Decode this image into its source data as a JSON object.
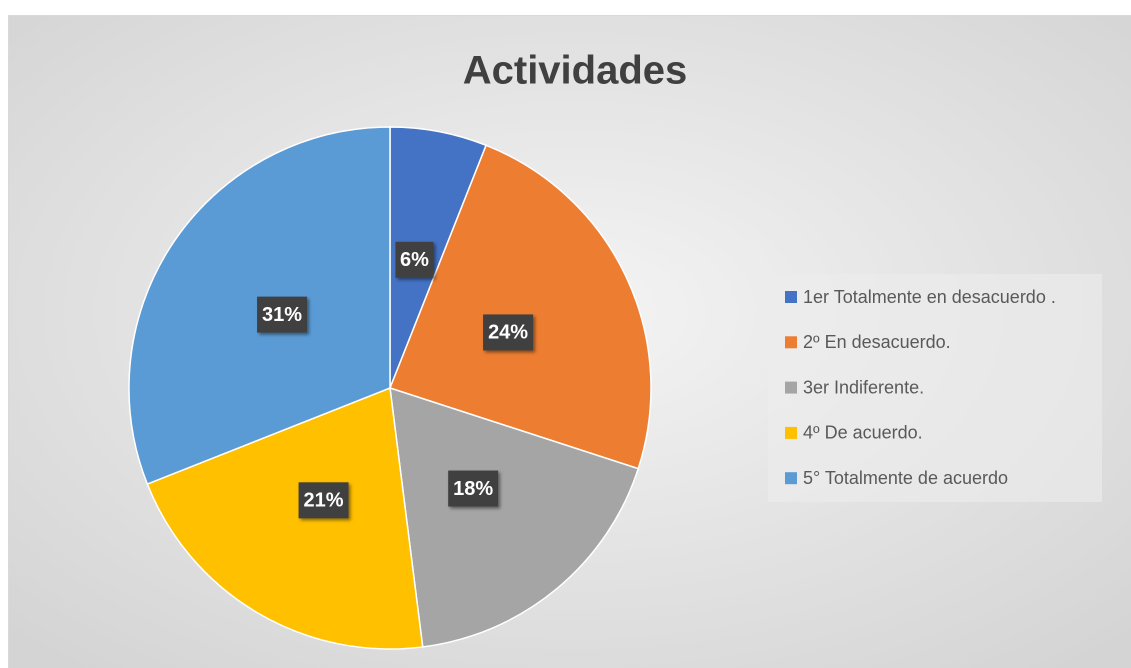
{
  "chart_data": {
    "type": "pie",
    "title": "Actividades",
    "categories": [
      "1er Totalmente en desacuerdo .",
      "2º En desacuerdo.",
      "3er Indiferente.",
      "4º De acuerdo.",
      "5° Totalmente de acuerdo"
    ],
    "values": [
      6,
      24,
      18,
      21,
      31
    ],
    "value_labels": [
      "6%",
      "24%",
      "18%",
      "21%",
      "31%"
    ],
    "colors": [
      "#4472c4",
      "#ed7d31",
      "#a5a5a5",
      "#ffc000",
      "#5b9bd5"
    ],
    "legend": "right"
  }
}
